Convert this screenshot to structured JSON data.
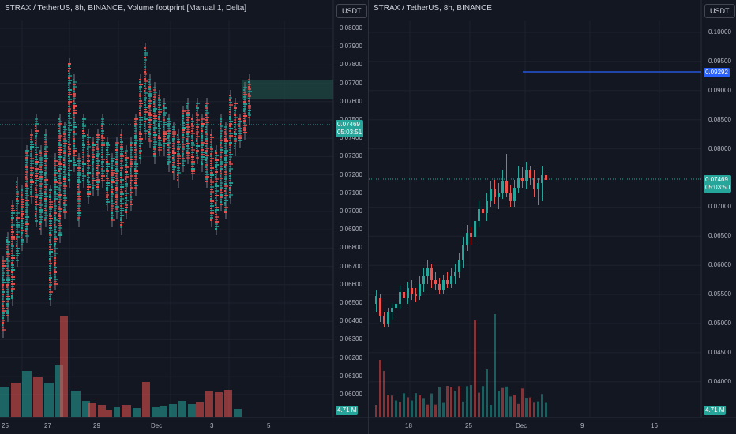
{
  "left": {
    "title": "STRAX / TetherUS, 8h, BINANCE, Volume footprint [Manual 1, Delta]",
    "currency": "USDT",
    "price_ticks": [
      "0.08000",
      "0.07900",
      "0.07800",
      "0.07700",
      "0.07600",
      "0.07500",
      "0.07400",
      "0.07300",
      "0.07200",
      "0.07100",
      "0.07000",
      "0.06900",
      "0.06800",
      "0.06700",
      "0.06600",
      "0.06500",
      "0.06400",
      "0.06300",
      "0.06200",
      "0.06100",
      "0.06000"
    ],
    "date_ticks": [
      "25",
      "27",
      "29",
      "Dec",
      "3",
      "5"
    ],
    "last_price": "0.07469",
    "countdown": "05:03:51",
    "volume_label": "4.71 M"
  },
  "right": {
    "title": "STRAX / TetherUS, 8h, BINANCE",
    "currency": "USDT",
    "price_ticks": [
      "0.10000",
      "0.09500",
      "0.09000",
      "0.08500",
      "0.08000",
      "0.07500",
      "0.07000",
      "0.06500",
      "0.06000",
      "0.05500",
      "0.05000",
      "0.04500",
      "0.04000"
    ],
    "date_ticks": [
      "18",
      "25",
      "Dec",
      "9",
      "16"
    ],
    "last_price": "0.07469",
    "countdown": "05:03:50",
    "horizontal_line_price": "0.09292",
    "volume_label": "4.71 M"
  },
  "colors": {
    "up": "#26a69a",
    "down": "#ef5350",
    "line": "#2962ff",
    "bg": "#131722"
  }
}
